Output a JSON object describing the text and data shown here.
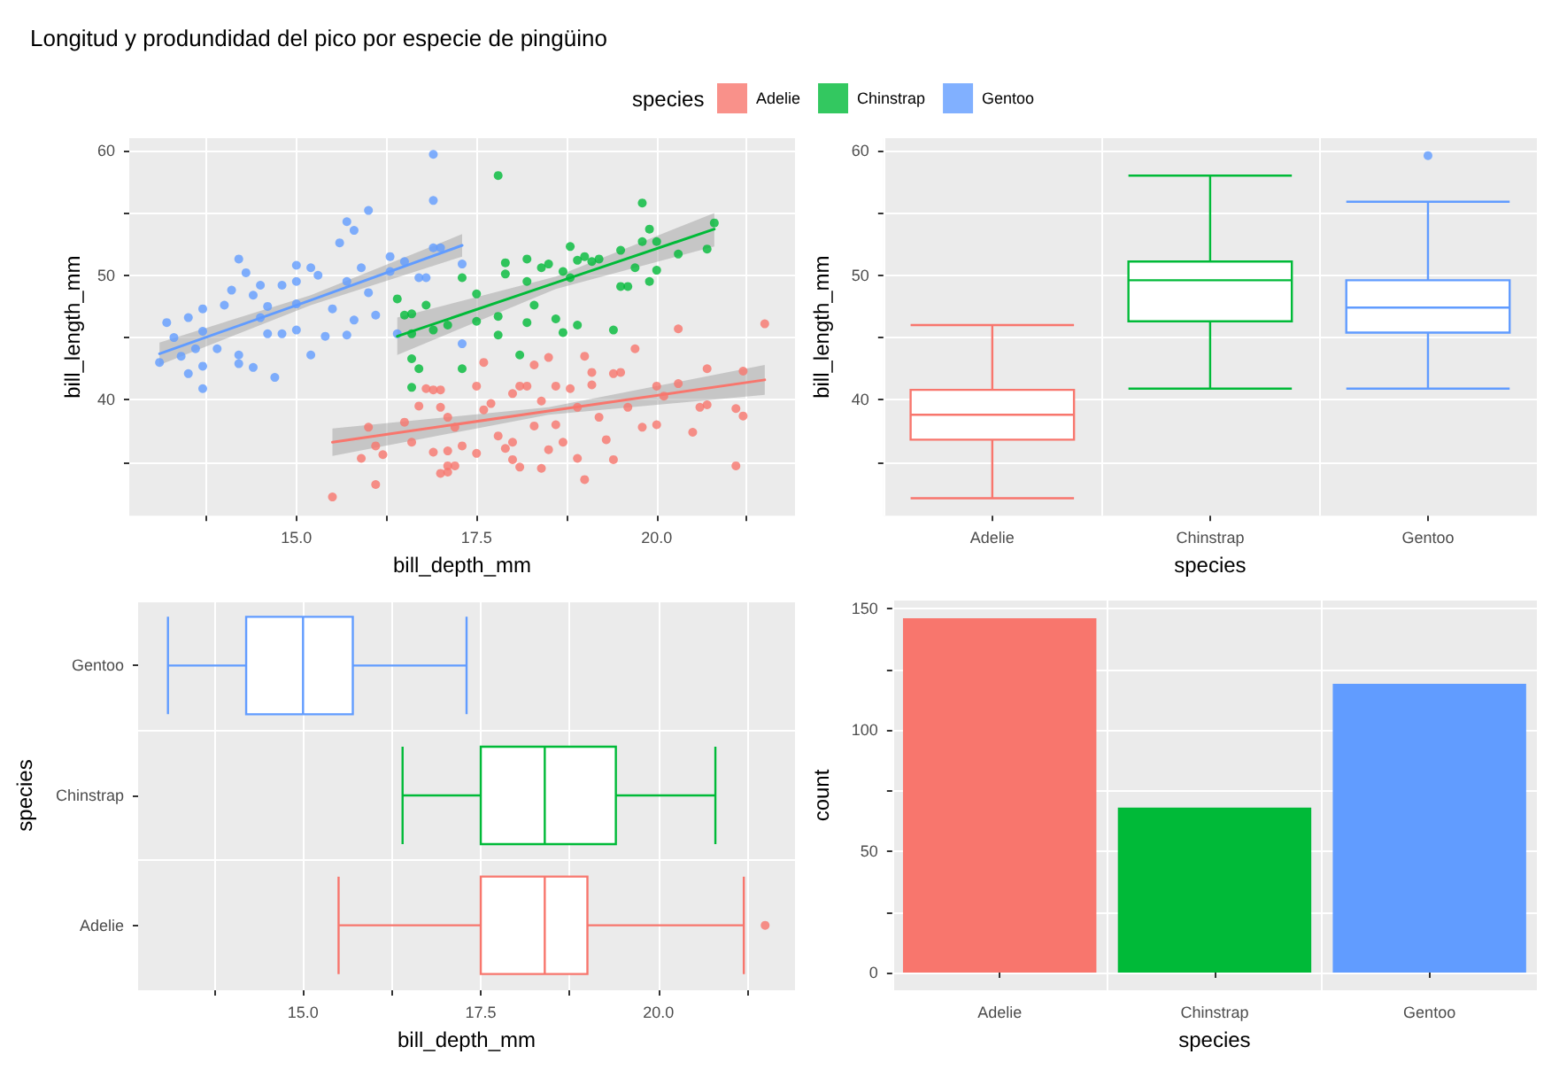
{
  "chart_data": [
    {
      "type": "scatter",
      "title": "Longitud y produndidad del pico por especie de pingüino",
      "legend_title": "species",
      "legend": "top",
      "marker": "circle",
      "grid": true,
      "xlabel": "bill_depth_mm",
      "ylabel": "bill_length_mm",
      "xlim": [
        12.68,
        21.92
      ],
      "ylim": [
        30.7,
        61.0
      ],
      "xticks": [
        {
          "value": 13.75,
          "label": null
        },
        {
          "value": 15,
          "label": "15.0"
        },
        {
          "value": 16.25,
          "label": null
        },
        {
          "value": 17.5,
          "label": "17.5"
        },
        {
          "value": 18.75,
          "label": null
        },
        {
          "value": 20,
          "label": "20.0"
        },
        {
          "value": 21.25,
          "label": null
        }
      ],
      "yticks": [
        {
          "value": 35,
          "label": null
        },
        40,
        {
          "value": 45,
          "label": null
        },
        50,
        {
          "value": 55,
          "label": null
        },
        60
      ],
      "series": [
        {
          "name": "Adelie",
          "color": "#f8766d",
          "x": [
            15.5,
            15.9,
            16.1,
            16.1,
            16.2,
            16.0,
            16.5,
            16.6,
            16.7,
            16.8,
            16.9,
            16.9,
            17.0,
            17.1,
            17.0,
            17.0,
            17.1,
            17.1,
            17.2,
            17.3,
            17.1,
            17.2,
            17.5,
            17.5,
            17.6,
            17.6,
            17.7,
            17.8,
            17.9,
            18.0,
            18.0,
            18.0,
            18.1,
            18.1,
            18.2,
            18.3,
            18.3,
            18.4,
            18.4,
            18.5,
            18.5,
            18.6,
            18.6,
            18.7,
            18.8,
            18.9,
            18.9,
            19.0,
            19.0,
            19.1,
            19.1,
            19.2,
            19.3,
            19.4,
            19.4,
            19.5,
            19.6,
            19.7,
            19.8,
            20.0,
            20.0,
            20.1,
            20.3,
            20.3,
            20.5,
            20.6,
            20.7,
            20.7,
            21.1,
            21.1,
            21.2,
            21.2,
            21.5
          ],
          "values": [
            32.2,
            35.3,
            33.2,
            36.3,
            35.6,
            37.8,
            38.2,
            36.6,
            39.5,
            40.9,
            35.8,
            40.8,
            34.1,
            34.7,
            40.8,
            39.4,
            38.6,
            35.9,
            37.8,
            36.3,
            34.2,
            34.7,
            41.1,
            35.7,
            43.0,
            39.2,
            39.7,
            37.1,
            36.1,
            35.2,
            40.5,
            36.6,
            34.6,
            41.1,
            41.1,
            42.8,
            37.9,
            34.5,
            39.9,
            43.4,
            36.0,
            41.1,
            38.0,
            36.6,
            40.9,
            35.3,
            39.4,
            33.6,
            43.5,
            42.2,
            41.2,
            38.6,
            36.8,
            35.2,
            42.1,
            42.2,
            39.4,
            44.1,
            37.8,
            41.1,
            38.0,
            40.3,
            45.7,
            41.3,
            37.4,
            39.4,
            42.5,
            39.6,
            39.3,
            34.7,
            42.3,
            38.7,
            46.1
          ]
        },
        {
          "name": "Chinstrap",
          "color": "#00ba38",
          "x": [
            16.4,
            16.5,
            16.6,
            16.8,
            16.6,
            16.6,
            16.7,
            16.6,
            17.1,
            16.9,
            17.3,
            17.3,
            17.5,
            17.5,
            17.8,
            17.8,
            17.8,
            17.9,
            17.9,
            18.1,
            18.2,
            18.2,
            18.2,
            18.3,
            18.4,
            18.5,
            18.6,
            18.7,
            18.7,
            18.8,
            18.8,
            18.9,
            18.9,
            19.0,
            19.1,
            19.2,
            19.4,
            19.5,
            19.5,
            19.6,
            19.7,
            19.8,
            19.8,
            19.9,
            19.9,
            20.0,
            20.0,
            20.3,
            20.7,
            20.8
          ],
          "values": [
            48.1,
            46.8,
            46.9,
            47.6,
            45.3,
            43.3,
            42.5,
            41.0,
            46.0,
            45.6,
            49.8,
            42.5,
            48.5,
            46.3,
            58.0,
            46.7,
            45.2,
            51.0,
            50.1,
            43.6,
            51.3,
            49.5,
            46.2,
            47.6,
            50.6,
            50.9,
            46.5,
            50.3,
            45.4,
            52.3,
            49.8,
            46.0,
            51.2,
            51.5,
            51.1,
            51.3,
            45.6,
            49.1,
            52.0,
            49.1,
            50.6,
            55.8,
            52.7,
            53.7,
            49.5,
            50.4,
            52.7,
            51.7,
            52.1,
            54.2
          ]
        },
        {
          "name": "Gentoo",
          "color": "#619cff",
          "x": [
            13.1,
            13.2,
            13.3,
            13.4,
            13.5,
            13.5,
            13.6,
            13.7,
            13.7,
            13.7,
            13.7,
            13.9,
            14.0,
            14.1,
            14.2,
            14.2,
            14.2,
            14.3,
            14.4,
            14.5,
            14.4,
            14.5,
            14.6,
            14.6,
            14.7,
            14.8,
            14.8,
            15.0,
            15.0,
            15.0,
            15.0,
            15.2,
            15.2,
            15.3,
            15.4,
            15.5,
            15.6,
            15.7,
            15.8,
            15.7,
            15.7,
            15.8,
            16.0,
            15.9,
            16.1,
            16.0,
            16.3,
            16.3,
            16.5,
            16.7,
            16.9,
            16.9,
            17.0,
            16.9,
            17.3,
            16.8,
            17.3,
            16.4
          ],
          "values": [
            43.0,
            46.2,
            45.0,
            43.5,
            46.6,
            42.1,
            44.1,
            47.3,
            42.7,
            40.9,
            45.5,
            44.1,
            47.6,
            48.8,
            51.3,
            42.9,
            43.6,
            50.2,
            48.4,
            46.6,
            42.6,
            49.2,
            47.5,
            45.3,
            41.8,
            49.2,
            45.3,
            50.8,
            49.5,
            47.7,
            45.6,
            43.6,
            50.6,
            50.0,
            45.1,
            47.3,
            52.6,
            54.3,
            53.6,
            49.5,
            45.2,
            46.4,
            55.2,
            50.6,
            46.8,
            48.6,
            51.5,
            50.3,
            51.1,
            49.8,
            59.7,
            56.0,
            52.2,
            52.2,
            50.9,
            49.8,
            44.5,
            45.3
          ]
        },
        {
          "type": "line",
          "marker": "none",
          "color": "#f8766d",
          "x": [
            15.5,
            18.5,
            21.5
          ],
          "values": [
            36.6,
            39.1,
            41.6
          ],
          "lower": [
            35.5,
            38.8,
            40.4
          ],
          "upper": [
            37.7,
            39.4,
            42.8
          ]
        },
        {
          "type": "line",
          "marker": "none",
          "color": "#00ba38",
          "x": [
            16.4,
            18.6,
            20.8
          ],
          "values": [
            45.1,
            49.4,
            53.7
          ],
          "lower": [
            43.6,
            48.9,
            52.3
          ],
          "upper": [
            46.6,
            49.9,
            55.0
          ]
        },
        {
          "type": "line",
          "marker": "none",
          "color": "#619cff",
          "x": [
            13.1,
            15.2,
            17.3
          ],
          "values": [
            43.7,
            48.0,
            52.4
          ],
          "lower": [
            42.8,
            47.6,
            51.5
          ],
          "upper": [
            44.6,
            48.4,
            53.3
          ]
        }
      ]
    },
    {
      "type": "box",
      "categories": [
        "Adelie",
        "Chinstrap",
        "Gentoo"
      ],
      "colors": [
        "#f8766d",
        "#00ba38",
        "#619cff"
      ],
      "grid": true,
      "xlabel": "species",
      "ylabel": "bill_length_mm",
      "ylim": [
        30.7,
        61.0
      ],
      "yticks": [
        {
          "value": 35,
          "label": null
        },
        40,
        {
          "value": 45,
          "label": null
        },
        50,
        {
          "value": 55,
          "label": null
        },
        60
      ],
      "boxes": [
        {
          "low": 32.1,
          "q1": 36.8,
          "median": 38.8,
          "q3": 40.8,
          "high": 46.0
        },
        {
          "low": 40.9,
          "q1": 46.3,
          "median": 49.6,
          "q3": 51.1,
          "high": 58.0
        },
        {
          "low": 40.9,
          "q1": 45.4,
          "median": 47.4,
          "q3": 49.6,
          "high": 55.9,
          "outliers": [
            59.6
          ]
        }
      ]
    },
    {
      "type": "box",
      "orientation": "horizontal",
      "categories": [
        "Gentoo",
        "Chinstrap",
        "Adelie"
      ],
      "colors": [
        "#619cff",
        "#00ba38",
        "#f8766d"
      ],
      "grid": true,
      "xlabel": "bill_depth_mm",
      "ylabel": "species",
      "xlim": [
        12.68,
        21.92
      ],
      "xticks": [
        {
          "value": 13.75,
          "label": null
        },
        {
          "value": 15,
          "label": "15.0"
        },
        {
          "value": 16.25,
          "label": null
        },
        {
          "value": 17.5,
          "label": "17.5"
        },
        {
          "value": 18.75,
          "label": null
        },
        {
          "value": 20,
          "label": "20.0"
        },
        {
          "value": 21.25,
          "label": null
        }
      ],
      "boxes": [
        {
          "low": 13.1,
          "q1": 14.2,
          "median": 15.0,
          "q3": 15.7,
          "high": 17.3
        },
        {
          "low": 16.4,
          "q1": 17.5,
          "median": 18.4,
          "q3": 19.4,
          "high": 20.8
        },
        {
          "low": 15.5,
          "q1": 17.5,
          "median": 18.4,
          "q3": 19.0,
          "high": 21.2,
          "outliers": [
            21.5
          ]
        }
      ]
    },
    {
      "type": "bar",
      "categories": [
        "Adelie",
        "Chinstrap",
        "Gentoo"
      ],
      "values": [
        146,
        68,
        119
      ],
      "colors": [
        "#f8766d",
        "#00ba38",
        "#619cff"
      ],
      "grid": true,
      "xlabel": "species",
      "ylabel": "count",
      "ylim": [
        -7.3,
        153.3
      ],
      "yticks": [
        0,
        {
          "value": 25,
          "label": null
        },
        50,
        {
          "value": 75,
          "label": null
        },
        100,
        {
          "value": 125,
          "label": null
        },
        150
      ]
    }
  ]
}
